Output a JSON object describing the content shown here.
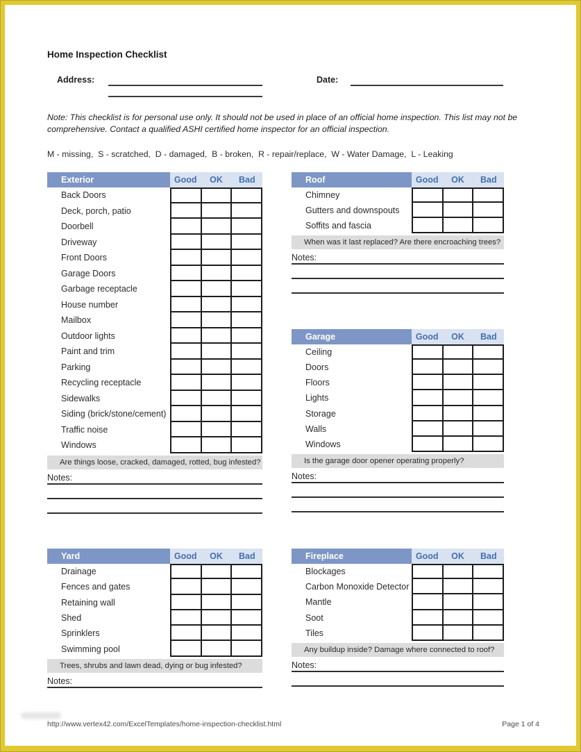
{
  "header": {
    "title": "Home Inspection Checklist",
    "address_label": "Address:",
    "date_label": "Date:",
    "note": "Note: This checklist is for personal use only. It should not be used in place of an official home inspection. This list may not be comprehensive. Contact a qualified ASHI certified home inspector for an official inspection.",
    "legend": "M - missing,  S - scratched,  D - damaged,  B - broken,  R - repair/replace,  W - Water Damage,  L - Leaking"
  },
  "notes_label": "Notes:",
  "columns": [
    "Good",
    "OK",
    "Bad"
  ],
  "sections": [
    {
      "id": "exterior",
      "title": "Exterior",
      "rows": [
        "Back Doors",
        "Deck, porch, patio",
        "Doorbell",
        "Driveway",
        "Front Doors",
        "Garage Doors",
        "Garbage receptacle",
        "House number",
        "Mailbox",
        "Outdoor lights",
        "Paint and trim",
        "Parking",
        "Recycling receptacle",
        "Sidewalks",
        "Siding (brick/stone/cement)",
        "Traffic noise",
        "Windows"
      ],
      "question": "Are things loose, cracked, damaged, rotted, bug infested?",
      "notes_lines": 3
    },
    {
      "id": "roof",
      "title": "Roof",
      "rows": [
        "Chimney",
        "Gutters and downspouts",
        "Soffits and fascia"
      ],
      "question": "When was it last replaced? Are there encroaching trees?",
      "notes_lines": 3
    },
    {
      "id": "garage",
      "title": "Garage",
      "rows": [
        "Ceiling",
        "Doors",
        "Floors",
        "Lights",
        "Storage",
        "Walls",
        "Windows"
      ],
      "question": "Is the garage door opener operating properly?",
      "notes_lines": 3
    },
    {
      "id": "yard",
      "title": "Yard",
      "rows": [
        "Drainage",
        "Fences and gates",
        "Retaining wall",
        "Shed",
        "Sprinklers",
        "Swimming pool"
      ],
      "question": "Trees, shrubs and lawn dead, dying or bug infested?",
      "notes_lines": 1
    },
    {
      "id": "fireplace",
      "title": "Fireplace",
      "rows": [
        "Blockages",
        "Carbon Monoxide Detector",
        "Mantle",
        "Soot",
        "Tiles"
      ],
      "question": "Any buildup inside? Damage where connected to roof?",
      "notes_lines": 2
    }
  ],
  "footer": {
    "url": "http://www.vertex42.com/ExcelTemplates/home-inspection-checklist.html",
    "page": "Page 1 of 4"
  },
  "colors": {
    "page_border": "#E0C931",
    "section_header_bg": "#7E96C6",
    "section_header_text": "#FFFFFF",
    "column_header_bg": "#D9E2F1",
    "column_header_text": "#4470B0",
    "question_bar_bg": "#DCDCDC",
    "grid_line": "#1C1C1C"
  }
}
